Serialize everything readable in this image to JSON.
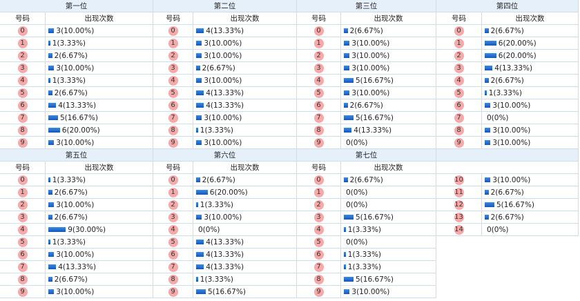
{
  "blocks": [
    {
      "title": "第一位",
      "headers": [
        "号码",
        "出现次数"
      ],
      "rows": [
        {
          "ball": "0",
          "count": 3,
          "label": "3(10.00%)"
        },
        {
          "ball": "1",
          "count": 1,
          "label": "1(3.33%)"
        },
        {
          "ball": "2",
          "count": 2,
          "label": "2(6.67%)"
        },
        {
          "ball": "3",
          "count": 3,
          "label": "3(10.00%)"
        },
        {
          "ball": "4",
          "count": 1,
          "label": "1(3.33%)"
        },
        {
          "ball": "5",
          "count": 2,
          "label": "2(6.67%)"
        },
        {
          "ball": "6",
          "count": 4,
          "label": "4(13.33%)"
        },
        {
          "ball": "7",
          "count": 5,
          "label": "5(16.67%)"
        },
        {
          "ball": "8",
          "count": 6,
          "label": "6(20.00%)"
        },
        {
          "ball": "9",
          "count": 3,
          "label": "3(10.00%)"
        }
      ]
    },
    {
      "title": "第二位",
      "headers": [
        "号码",
        "出现次数"
      ],
      "rows": [
        {
          "ball": "0",
          "count": 4,
          "label": "4(13.33%)"
        },
        {
          "ball": "1",
          "count": 3,
          "label": "3(10.00%)"
        },
        {
          "ball": "2",
          "count": 3,
          "label": "3(10.00%)"
        },
        {
          "ball": "3",
          "count": 2,
          "label": "2(6.67%)"
        },
        {
          "ball": "4",
          "count": 3,
          "label": "3(10.00%)"
        },
        {
          "ball": "5",
          "count": 4,
          "label": "4(13.33%)"
        },
        {
          "ball": "6",
          "count": 4,
          "label": "4(13.33%)"
        },
        {
          "ball": "7",
          "count": 3,
          "label": "3(10.00%)"
        },
        {
          "ball": "8",
          "count": 1,
          "label": "1(3.33%)"
        },
        {
          "ball": "9",
          "count": 3,
          "label": "3(10.00%)"
        }
      ]
    },
    {
      "title": "第三位",
      "headers": [
        "号码",
        "出现次数"
      ],
      "rows": [
        {
          "ball": "0",
          "count": 2,
          "label": "2(6.67%)"
        },
        {
          "ball": "1",
          "count": 3,
          "label": "3(10.00%)"
        },
        {
          "ball": "2",
          "count": 3,
          "label": "3(10.00%)"
        },
        {
          "ball": "3",
          "count": 3,
          "label": "3(10.00%)"
        },
        {
          "ball": "4",
          "count": 5,
          "label": "5(16.67%)"
        },
        {
          "ball": "5",
          "count": 3,
          "label": "3(10.00%)"
        },
        {
          "ball": "6",
          "count": 2,
          "label": "2(6.67%)"
        },
        {
          "ball": "7",
          "count": 5,
          "label": "5(16.67%)"
        },
        {
          "ball": "8",
          "count": 4,
          "label": "4(13.33%)"
        },
        {
          "ball": "9",
          "count": 0,
          "label": "0(0%)"
        }
      ]
    },
    {
      "title": "第四位",
      "headers": [
        "号码",
        "出现次数"
      ],
      "rows": [
        {
          "ball": "0",
          "count": 2,
          "label": "2(6.67%)"
        },
        {
          "ball": "1",
          "count": 6,
          "label": "6(20.00%)"
        },
        {
          "ball": "2",
          "count": 6,
          "label": "6(20.00%)"
        },
        {
          "ball": "3",
          "count": 4,
          "label": "4(13.33%)"
        },
        {
          "ball": "4",
          "count": 2,
          "label": "2(6.67%)"
        },
        {
          "ball": "5",
          "count": 1,
          "label": "1(3.33%)"
        },
        {
          "ball": "6",
          "count": 3,
          "label": "3(10.00%)"
        },
        {
          "ball": "7",
          "count": 0,
          "label": "0(0%)"
        },
        {
          "ball": "8",
          "count": 3,
          "label": "3(10.00%)"
        },
        {
          "ball": "9",
          "count": 3,
          "label": "3(10.00%)"
        }
      ]
    },
    {
      "title": "第五位",
      "headers": [
        "号码",
        "出现次数"
      ],
      "rows": [
        {
          "ball": "0",
          "count": 1,
          "label": "1(3.33%)"
        },
        {
          "ball": "1",
          "count": 2,
          "label": "2(6.67%)"
        },
        {
          "ball": "2",
          "count": 3,
          "label": "3(10.00%)"
        },
        {
          "ball": "3",
          "count": 2,
          "label": "2(6.67%)"
        },
        {
          "ball": "4",
          "count": 9,
          "label": "9(30.00%)"
        },
        {
          "ball": "5",
          "count": 1,
          "label": "1(3.33%)"
        },
        {
          "ball": "6",
          "count": 3,
          "label": "3(10.00%)"
        },
        {
          "ball": "7",
          "count": 4,
          "label": "4(13.33%)"
        },
        {
          "ball": "8",
          "count": 2,
          "label": "2(6.67%)"
        },
        {
          "ball": "9",
          "count": 3,
          "label": "3(10.00%)"
        }
      ]
    },
    {
      "title": "第六位",
      "headers": [
        "号码",
        "出现次数"
      ],
      "rows": [
        {
          "ball": "0",
          "count": 2,
          "label": "2(6.67%)"
        },
        {
          "ball": "1",
          "count": 6,
          "label": "6(20.00%)"
        },
        {
          "ball": "2",
          "count": 1,
          "label": "1(3.33%)"
        },
        {
          "ball": "3",
          "count": 3,
          "label": "3(10.00%)"
        },
        {
          "ball": "4",
          "count": 0,
          "label": "0(0%)"
        },
        {
          "ball": "5",
          "count": 4,
          "label": "4(13.33%)"
        },
        {
          "ball": "6",
          "count": 4,
          "label": "4(13.33%)"
        },
        {
          "ball": "7",
          "count": 4,
          "label": "4(13.33%)"
        },
        {
          "ball": "8",
          "count": 1,
          "label": "1(3.33%)"
        },
        {
          "ball": "9",
          "count": 5,
          "label": "5(16.67%)"
        }
      ]
    },
    {
      "title": "第七位",
      "headers": [
        "号码",
        "出现次数"
      ],
      "rows": [
        {
          "ball": "0",
          "count": 2,
          "label": "2(6.67%)"
        },
        {
          "ball": "1",
          "count": 0,
          "label": "0(0%)"
        },
        {
          "ball": "2",
          "count": 0,
          "label": "0(0%)"
        },
        {
          "ball": "3",
          "count": 5,
          "label": "5(16.67%)"
        },
        {
          "ball": "4",
          "count": 1,
          "label": "1(3.33%)"
        },
        {
          "ball": "5",
          "count": 0,
          "label": "0(0%)"
        },
        {
          "ball": "6",
          "count": 1,
          "label": "1(3.33%)"
        },
        {
          "ball": "7",
          "count": 1,
          "label": "1(3.33%)"
        },
        {
          "ball": "8",
          "count": 5,
          "label": "5(16.67%)"
        },
        {
          "ball": "9",
          "count": 3,
          "label": "3(10.00%)"
        }
      ]
    },
    {
      "rows": [
        {
          "ball": "10",
          "count": 3,
          "label": "3(10.00%)"
        },
        {
          "ball": "11",
          "count": 2,
          "label": "2(6.67%)"
        },
        {
          "ball": "12",
          "count": 5,
          "label": "5(16.67%)"
        },
        {
          "ball": "13",
          "count": 2,
          "label": "2(6.67%)"
        },
        {
          "ball": "14",
          "count": 0,
          "label": "0(0%)"
        }
      ]
    }
  ]
}
